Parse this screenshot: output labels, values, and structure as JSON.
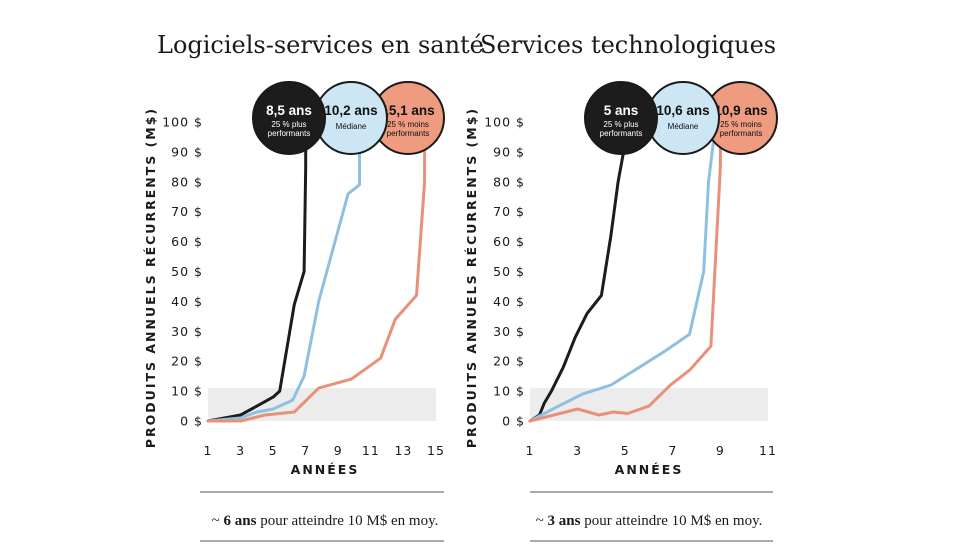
{
  "colors": {
    "top": "#1c1c1c",
    "median": "#8ec1e0",
    "bottom": "#e8917a",
    "median_fill": "#cce6f4",
    "bottom_fill": "#ee9b80",
    "band": "#ececec",
    "text": "#1a1a1a"
  },
  "chart_data": [
    {
      "type": "line",
      "title": "Logiciels-services en santé",
      "xlabel": "ANNÉES",
      "ylabel": "PRODUITS ANNUELS RÉCURRENTS (M$)",
      "xlim": [
        1,
        15
      ],
      "ylim": [
        0,
        100
      ],
      "x_ticks": [
        "1",
        "3",
        "5",
        "7",
        "9",
        "11",
        "13",
        "15"
      ],
      "y_ticks": [
        "0 $",
        "10 $",
        "20 $",
        "30 $",
        "40 $",
        "50 $",
        "60 $",
        "70 $",
        "80 $",
        "90 $",
        "100 $"
      ],
      "highlight_band": [
        0,
        11
      ],
      "series": [
        {
          "name": "25 % plus performants",
          "key": "top",
          "label": "8,5 ans",
          "x": [
            1,
            2,
            3,
            4,
            5,
            5.4,
            6.3,
            6.9,
            7.0,
            7.0
          ],
          "y": [
            0,
            1,
            2,
            5,
            8,
            10,
            39,
            50,
            85,
            93
          ]
        },
        {
          "name": "Médiane",
          "key": "median",
          "label": "10,2 ans",
          "x": [
            1,
            3,
            4,
            5,
            6.2,
            6.9,
            7.8,
            8.8,
            9.6,
            10.3,
            10.3
          ],
          "y": [
            0,
            1,
            3,
            4,
            7,
            15,
            40,
            60,
            76,
            79,
            93
          ]
        },
        {
          "name": "25 % moins performants",
          "key": "bottom",
          "label": "15,1 ans",
          "x": [
            1,
            3,
            4.5,
            6.3,
            7.8,
            9.8,
            11.6,
            12.5,
            13.8,
            14.3,
            14.3
          ],
          "y": [
            0,
            0,
            2,
            3,
            11,
            14,
            21,
            34,
            42,
            80,
            93
          ]
        }
      ]
    },
    {
      "type": "line",
      "title": "Services technologiques",
      "xlabel": "ANNÉES",
      "ylabel": "PRODUITS ANNUELS RÉCURRENTS (M$)",
      "xlim": [
        1,
        11
      ],
      "ylim": [
        0,
        100
      ],
      "x_ticks": [
        "1",
        "3",
        "5",
        "7",
        "9",
        "11"
      ],
      "y_ticks": [
        "0 $",
        "10 $",
        "20 $",
        "30 $",
        "40 $",
        "50 $",
        "60 $",
        "70 $",
        "80 $",
        "90 $",
        "100 $"
      ],
      "highlight_band": [
        0,
        11
      ],
      "series": [
        {
          "name": "25 % plus performants",
          "key": "top",
          "label": "5 ans",
          "x": [
            1,
            1.4,
            1.6,
            1.9,
            2.4,
            2.9,
            3.4,
            4.0,
            4.4,
            4.7,
            5.0
          ],
          "y": [
            0,
            2,
            6,
            10,
            18,
            28,
            36,
            42,
            62,
            80,
            93
          ]
        },
        {
          "name": "Médiane",
          "key": "median",
          "label": "10,6 ans",
          "x": [
            1,
            2.2,
            3.2,
            4.4,
            5.6,
            6.6,
            7.7,
            8.3,
            8.5,
            8.7
          ],
          "y": [
            0,
            5,
            9,
            12,
            18,
            23,
            29,
            50,
            80,
            93
          ]
        },
        {
          "name": "25 % moins performants",
          "key": "bottom",
          "label": "10,9 ans",
          "x": [
            1,
            2.0,
            3.0,
            3.9,
            4.5,
            5.1,
            6.0,
            6.9,
            7.7,
            8.6,
            9.0,
            9.0
          ],
          "y": [
            0,
            2,
            4,
            2,
            3,
            2.5,
            5,
            12,
            17,
            25,
            85,
            93
          ]
        }
      ]
    }
  ],
  "footnotes": [
    {
      "prefix": "~ ",
      "bold": "6 ans",
      "rest": " pour atteindre 10 M$ en moy."
    },
    {
      "prefix": "~ ",
      "bold": "3 ans",
      "rest": " pour atteindre 10 M$ en moy."
    }
  ]
}
